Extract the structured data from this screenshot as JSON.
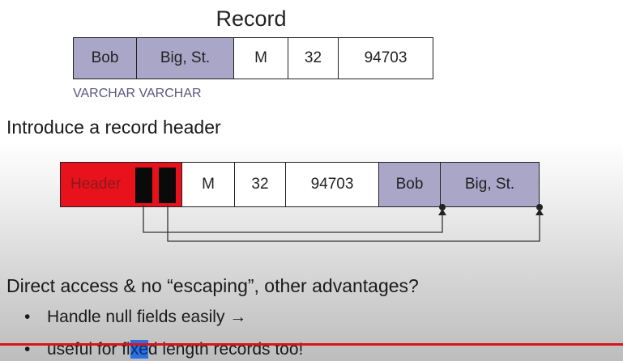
{
  "record1": {
    "title": "Record",
    "cells": [
      "Bob",
      "Big, St.",
      "M",
      "32",
      "94703"
    ],
    "type_label": "VARCHAR VARCHAR"
  },
  "intro": "Introduce a record header",
  "record2": {
    "cells": [
      "Header",
      "M",
      "32",
      "94703",
      "Bob",
      "Big, St."
    ]
  },
  "question": "Direct access & no “escaping”, other advantages?",
  "bullets": [
    "Handle null fields easily →",
    "useful for fixed length records too!"
  ],
  "bullet2_parts": [
    "useful for fi",
    "xe",
    "d length records too!"
  ],
  "bullet_symbol": "•",
  "colors": {
    "varchar_fill": "#a9a6c7",
    "header_fill": "#e8121c",
    "progress_line": "#d9141d"
  }
}
